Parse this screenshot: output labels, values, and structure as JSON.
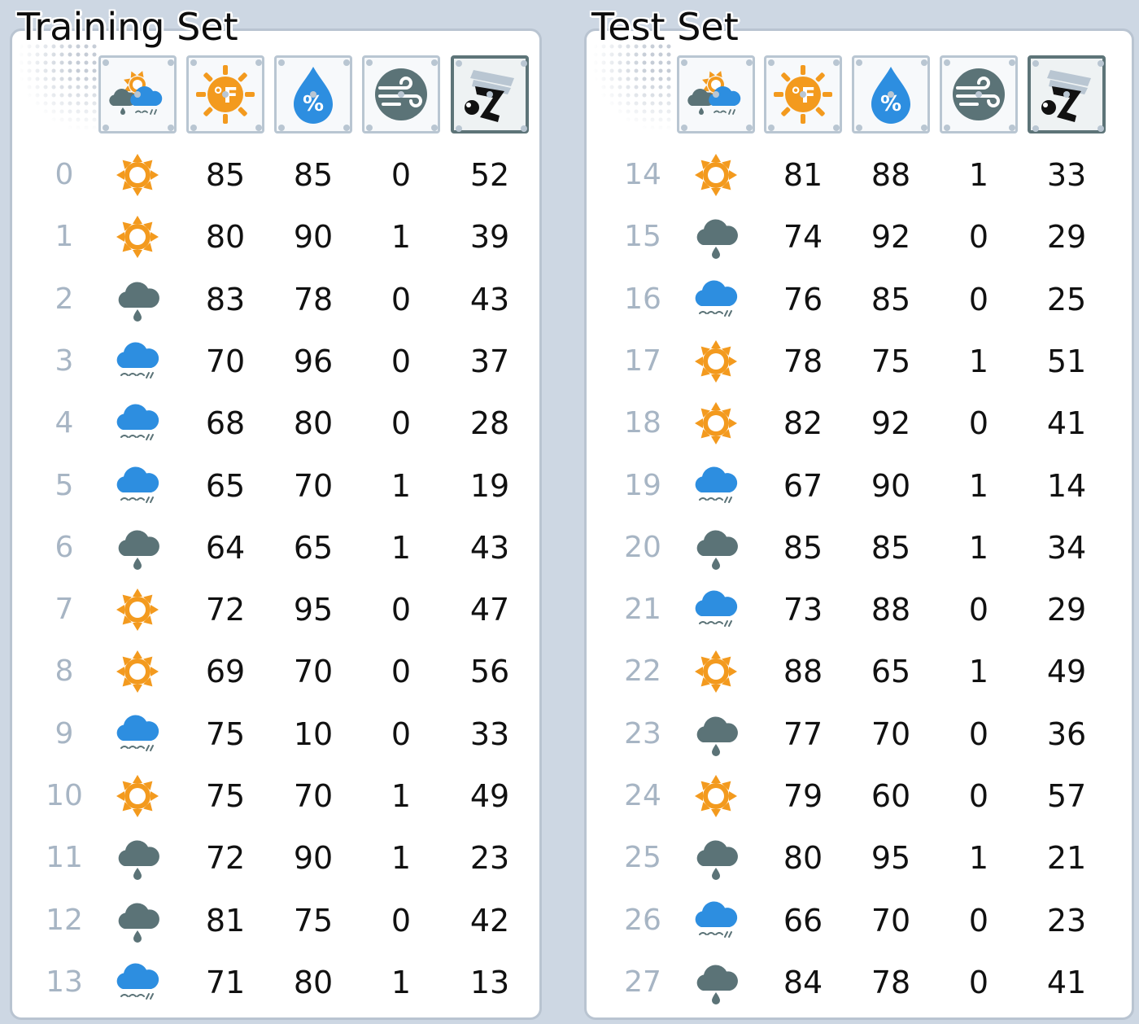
{
  "training": {
    "title": "Training Set",
    "rows": [
      {
        "index": "0",
        "outlook": "sunny",
        "temp": "85",
        "humidity": "85",
        "windy": "0",
        "play": "52"
      },
      {
        "index": "1",
        "outlook": "sunny",
        "temp": "80",
        "humidity": "90",
        "windy": "1",
        "play": "39"
      },
      {
        "index": "2",
        "outlook": "rainy",
        "temp": "83",
        "humidity": "78",
        "windy": "0",
        "play": "43"
      },
      {
        "index": "3",
        "outlook": "overcast",
        "temp": "70",
        "humidity": "96",
        "windy": "0",
        "play": "37"
      },
      {
        "index": "4",
        "outlook": "overcast",
        "temp": "68",
        "humidity": "80",
        "windy": "0",
        "play": "28"
      },
      {
        "index": "5",
        "outlook": "overcast",
        "temp": "65",
        "humidity": "70",
        "windy": "1",
        "play": "19"
      },
      {
        "index": "6",
        "outlook": "rainy",
        "temp": "64",
        "humidity": "65",
        "windy": "1",
        "play": "43"
      },
      {
        "index": "7",
        "outlook": "sunny",
        "temp": "72",
        "humidity": "95",
        "windy": "0",
        "play": "47"
      },
      {
        "index": "8",
        "outlook": "sunny",
        "temp": "69",
        "humidity": "70",
        "windy": "0",
        "play": "56"
      },
      {
        "index": "9",
        "outlook": "overcast",
        "temp": "75",
        "humidity": "10",
        "windy": "0",
        "play": "33"
      },
      {
        "index": "10",
        "outlook": "sunny",
        "temp": "75",
        "humidity": "70",
        "windy": "1",
        "play": "49"
      },
      {
        "index": "11",
        "outlook": "rainy",
        "temp": "72",
        "humidity": "90",
        "windy": "1",
        "play": "23"
      },
      {
        "index": "12",
        "outlook": "rainy",
        "temp": "81",
        "humidity": "75",
        "windy": "0",
        "play": "42"
      },
      {
        "index": "13",
        "outlook": "overcast",
        "temp": "71",
        "humidity": "80",
        "windy": "1",
        "play": "13"
      }
    ]
  },
  "test": {
    "title": "Test Set",
    "rows": [
      {
        "index": "14",
        "outlook": "sunny",
        "temp": "81",
        "humidity": "88",
        "windy": "1",
        "play": "33"
      },
      {
        "index": "15",
        "outlook": "rainy",
        "temp": "74",
        "humidity": "92",
        "windy": "0",
        "play": "29"
      },
      {
        "index": "16",
        "outlook": "overcast",
        "temp": "76",
        "humidity": "85",
        "windy": "0",
        "play": "25"
      },
      {
        "index": "17",
        "outlook": "sunny",
        "temp": "78",
        "humidity": "75",
        "windy": "1",
        "play": "51"
      },
      {
        "index": "18",
        "outlook": "sunny",
        "temp": "82",
        "humidity": "92",
        "windy": "0",
        "play": "41"
      },
      {
        "index": "19",
        "outlook": "overcast",
        "temp": "67",
        "humidity": "90",
        "windy": "1",
        "play": "14"
      },
      {
        "index": "20",
        "outlook": "rainy",
        "temp": "85",
        "humidity": "85",
        "windy": "1",
        "play": "34"
      },
      {
        "index": "21",
        "outlook": "overcast",
        "temp": "73",
        "humidity": "88",
        "windy": "0",
        "play": "29"
      },
      {
        "index": "22",
        "outlook": "sunny",
        "temp": "88",
        "humidity": "65",
        "windy": "1",
        "play": "49"
      },
      {
        "index": "23",
        "outlook": "rainy",
        "temp": "77",
        "humidity": "70",
        "windy": "0",
        "play": "36"
      },
      {
        "index": "24",
        "outlook": "sunny",
        "temp": "79",
        "humidity": "60",
        "windy": "0",
        "play": "57"
      },
      {
        "index": "25",
        "outlook": "rainy",
        "temp": "80",
        "humidity": "95",
        "windy": "1",
        "play": "21"
      },
      {
        "index": "26",
        "outlook": "overcast",
        "temp": "66",
        "humidity": "70",
        "windy": "0",
        "play": "23"
      },
      {
        "index": "27",
        "outlook": "rainy",
        "temp": "84",
        "humidity": "78",
        "windy": "0",
        "play": "41"
      }
    ]
  },
  "header_icons": [
    {
      "name": "outlook-icon",
      "active": false
    },
    {
      "name": "temperature-icon",
      "active": false
    },
    {
      "name": "humidity-icon",
      "active": false
    },
    {
      "name": "wind-icon",
      "active": false
    },
    {
      "name": "golf-play-icon",
      "active": true
    }
  ],
  "colors": {
    "sunny": "#f39a1e",
    "rainy": "#5b7377",
    "overcast": "#2d8ee0",
    "index_text": "#a7b5c4",
    "panel_border": "#b9c4d1",
    "background": "#cdd7e3"
  }
}
